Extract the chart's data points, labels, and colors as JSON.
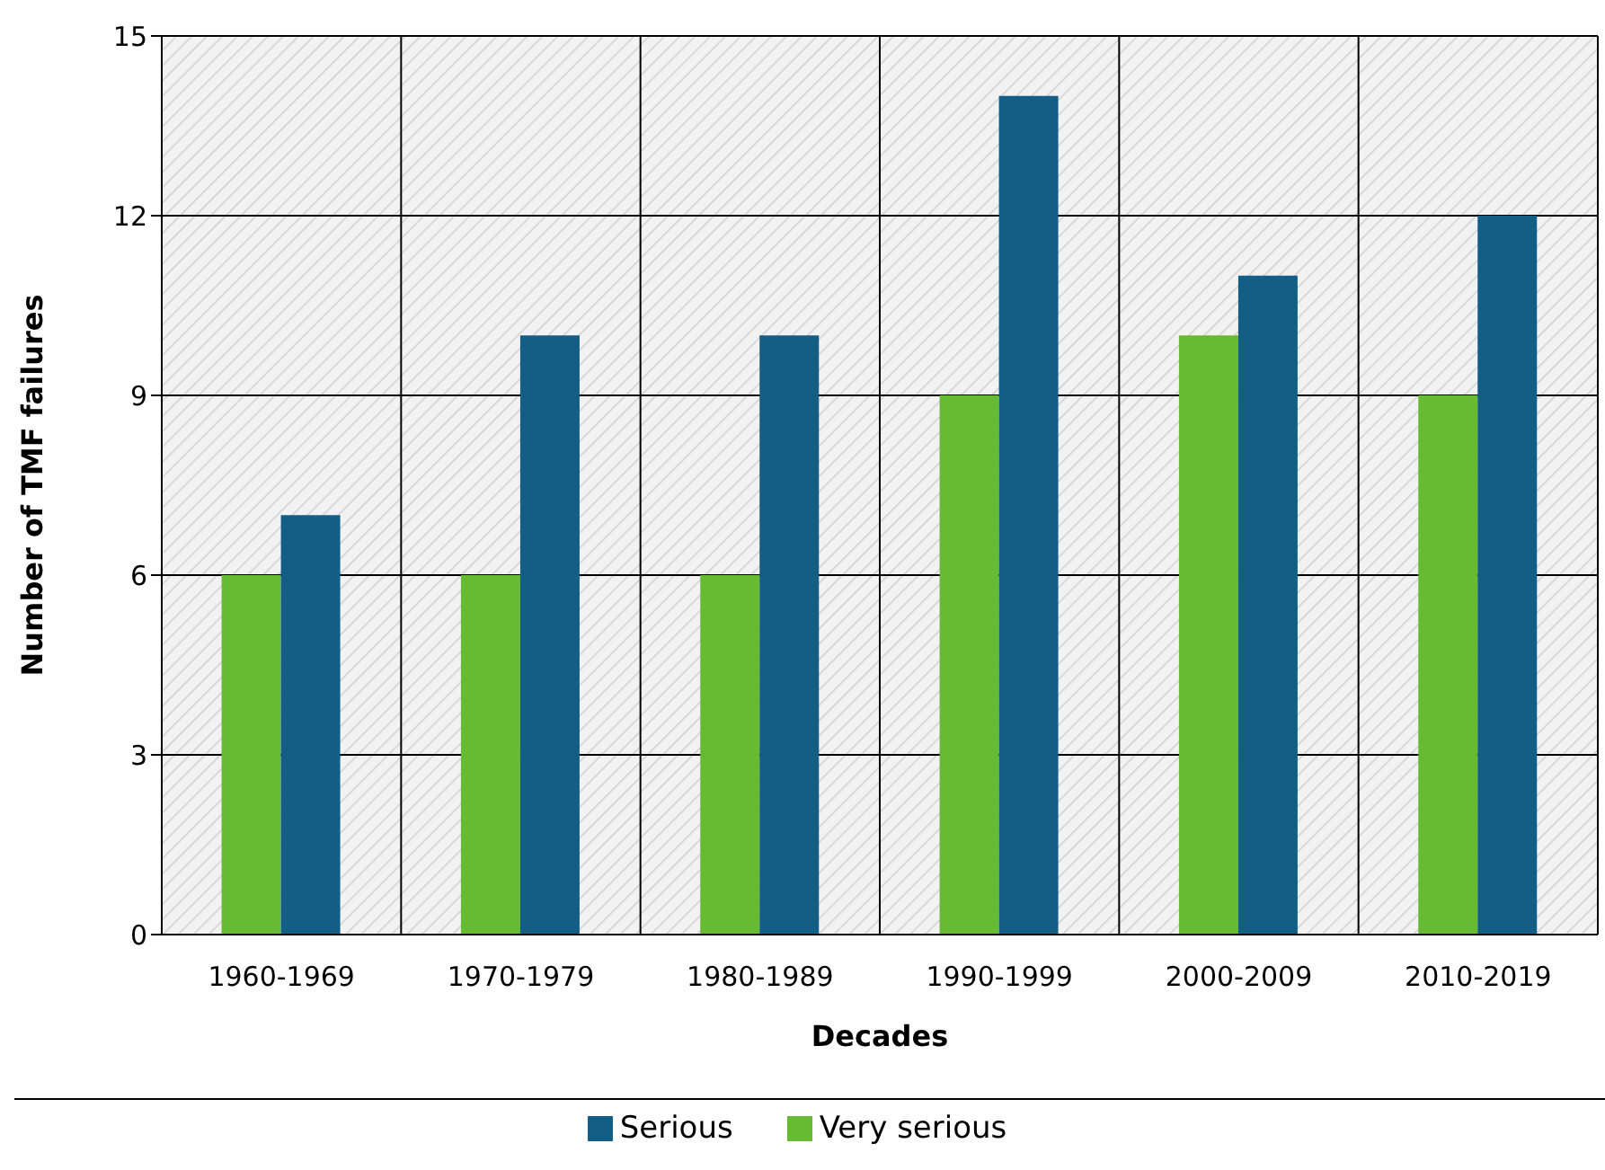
{
  "chart_data": {
    "type": "bar",
    "xlabel": "Decades",
    "ylabel": "Number of TMF failures",
    "categories": [
      "1960-1969",
      "1970-1979",
      "1980-1989",
      "1990-1999",
      "2000-2009",
      "2010-2019"
    ],
    "series": [
      {
        "name": "Very serious",
        "color": "#66bb33",
        "values": [
          6,
          6,
          6,
          9,
          10,
          9
        ]
      },
      {
        "name": "Serious",
        "color": "#135e85",
        "values": [
          7,
          10,
          10,
          14,
          11,
          12
        ]
      }
    ],
    "ylim": [
      0,
      15
    ],
    "yticks": [
      0,
      3,
      6,
      9,
      12,
      15
    ],
    "grid": true,
    "legend": "bottom"
  }
}
